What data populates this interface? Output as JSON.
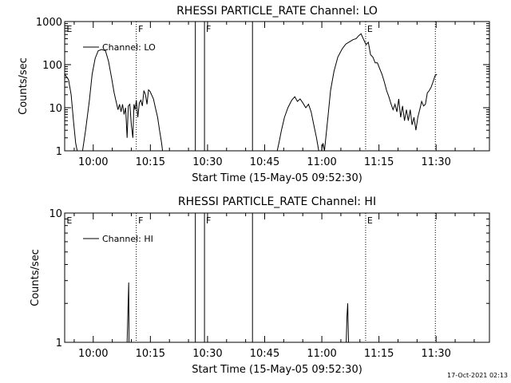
{
  "chart_data": [
    {
      "type": "line",
      "title": "RHESSI PARTICLE_RATE Channel: LO",
      "xlabel": "Start Time (15-May-05 09:52:30)",
      "ylabel": "Counts/sec",
      "y_scale": "log",
      "ylim": [
        1,
        1000
      ],
      "y_ticks": [
        {
          "v": 1,
          "label": "1"
        },
        {
          "v": 10,
          "label": "10"
        },
        {
          "v": 100,
          "label": "100"
        },
        {
          "v": 1000,
          "label": "1000"
        }
      ],
      "xlim_min": [
        -7.5,
        104
      ],
      "x_ticks": [
        {
          "t": 0,
          "label": "10:00"
        },
        {
          "t": 15,
          "label": "10:15"
        },
        {
          "t": 30,
          "label": "10:30"
        },
        {
          "t": 45,
          "label": "10:45"
        },
        {
          "t": 60,
          "label": "11:00"
        },
        {
          "t": 75,
          "label": "11:15"
        },
        {
          "t": 90,
          "label": "11:30"
        }
      ],
      "legend": {
        "label": "Channel: LO",
        "placement": "top-left"
      },
      "solid_markers": [
        26.8,
        29.2,
        41.8
      ],
      "dotted_markers": [
        11.3,
        71.5,
        89.8
      ],
      "marker_labels": [
        {
          "t": -7.0,
          "label": "E"
        },
        {
          "t": 11.8,
          "label": "F"
        },
        {
          "t": 29.6,
          "label": "F"
        },
        {
          "t": 71.9,
          "label": "E"
        }
      ],
      "series": [
        {
          "segments": [
            [
              [
                -7.5,
                60
              ],
              [
                -6.5,
                45
              ],
              [
                -5.8,
                20
              ],
              [
                -5.2,
                5
              ],
              [
                -4.6,
                1.5
              ],
              [
                -4.2,
                1
              ]
            ],
            [
              [
                -2.8,
                1
              ],
              [
                -2.0,
                3
              ],
              [
                -1.0,
                15
              ],
              [
                -0.3,
                60
              ],
              [
                0.5,
                140
              ],
              [
                1.3,
                210
              ],
              [
                2.2,
                225
              ],
              [
                3.2,
                210
              ],
              [
                4.0,
                120
              ],
              [
                4.8,
                50
              ],
              [
                5.5,
                22
              ],
              [
                6.0,
                14
              ],
              [
                6.5,
                9
              ],
              [
                6.9,
                12
              ],
              [
                7.3,
                8
              ],
              [
                7.7,
                12
              ],
              [
                8.1,
                7
              ],
              [
                8.5,
                10
              ],
              [
                8.9,
                2
              ],
              [
                9.2,
                11
              ],
              [
                9.6,
                12
              ],
              [
                10.0,
                4
              ],
              [
                10.4,
                2
              ],
              [
                10.7,
                12
              ],
              [
                11.0,
                9
              ],
              [
                11.3,
                15
              ],
              [
                11.7,
                6
              ],
              [
                12.1,
                13
              ],
              [
                12.5,
                15
              ],
              [
                12.9,
                11
              ],
              [
                13.3,
                25
              ],
              [
                13.7,
                20
              ],
              [
                14.1,
                12
              ],
              [
                14.5,
                26
              ],
              [
                14.9,
                24
              ],
              [
                15.3,
                20
              ],
              [
                15.8,
                16
              ],
              [
                16.3,
                10
              ],
              [
                16.9,
                6
              ],
              [
                17.4,
                3
              ],
              [
                17.9,
                1.6
              ],
              [
                18.2,
                1
              ]
            ],
            [
              [
                48.3,
                1
              ],
              [
                48.8,
                1.6
              ],
              [
                49.4,
                3
              ],
              [
                50.2,
                6
              ],
              [
                51.1,
                10
              ],
              [
                52.1,
                15
              ],
              [
                52.9,
                18
              ],
              [
                53.6,
                14
              ],
              [
                54.3,
                16
              ],
              [
                55.0,
                13
              ],
              [
                55.8,
                10
              ],
              [
                56.5,
                12
              ],
              [
                57.2,
                8
              ],
              [
                57.9,
                4
              ],
              [
                58.6,
                2
              ],
              [
                59.2,
                1
              ]
            ],
            [
              [
                59.9,
                1
              ],
              [
                60.3,
                1.5
              ],
              [
                60.7,
                1
              ],
              [
                61.0,
                1.8
              ],
              [
                61.6,
                6
              ],
              [
                62.3,
                25
              ],
              [
                63.2,
                70
              ],
              [
                64.2,
                150
              ],
              [
                65.3,
                230
              ],
              [
                66.3,
                300
              ],
              [
                67.3,
                340
              ],
              [
                68.2,
                380
              ],
              [
                69.0,
                400
              ],
              [
                69.7,
                470
              ],
              [
                70.3,
                520
              ],
              [
                71.0,
                380
              ],
              [
                71.6,
                290
              ],
              [
                72.2,
                330
              ],
              [
                72.8,
                170
              ],
              [
                73.4,
                150
              ],
              [
                74.0,
                110
              ],
              [
                74.6,
                110
              ],
              [
                75.2,
                80
              ],
              [
                75.8,
                60
              ],
              [
                76.4,
                40
              ],
              [
                77.0,
                25
              ],
              [
                77.6,
                18
              ],
              [
                78.2,
                12
              ],
              [
                78.7,
                9
              ],
              [
                79.2,
                12
              ],
              [
                79.7,
                8
              ],
              [
                80.2,
                16
              ],
              [
                80.7,
                6
              ],
              [
                81.2,
                11
              ],
              [
                81.7,
                5
              ],
              [
                82.2,
                9
              ],
              [
                82.7,
                5
              ],
              [
                83.2,
                9
              ],
              [
                83.7,
                4
              ],
              [
                84.2,
                6
              ],
              [
                84.7,
                3
              ],
              [
                85.2,
                6
              ],
              [
                85.7,
                9
              ],
              [
                86.2,
                14
              ],
              [
                86.7,
                11
              ],
              [
                87.2,
                12
              ],
              [
                87.7,
                22
              ],
              [
                88.2,
                25
              ],
              [
                88.7,
                30
              ],
              [
                89.2,
                40
              ],
              [
                89.7,
                55
              ],
              [
                90.2,
                60
              ]
            ]
          ]
        }
      ]
    },
    {
      "type": "line",
      "title": "RHESSI PARTICLE_RATE Channel: HI",
      "xlabel": "Start Time (15-May-05 09:52:30)",
      "ylabel": "Counts/sec",
      "y_scale": "log",
      "ylim": [
        1,
        10
      ],
      "y_ticks": [
        {
          "v": 1,
          "label": "1"
        },
        {
          "v": 10,
          "label": "10"
        }
      ],
      "xlim_min": [
        -7.5,
        104
      ],
      "x_ticks": [
        {
          "t": 0,
          "label": "10:00"
        },
        {
          "t": 15,
          "label": "10:15"
        },
        {
          "t": 30,
          "label": "10:30"
        },
        {
          "t": 45,
          "label": "10:45"
        },
        {
          "t": 60,
          "label": "11:00"
        },
        {
          "t": 75,
          "label": "11:15"
        },
        {
          "t": 90,
          "label": "11:30"
        }
      ],
      "legend": {
        "label": "Channel: HI",
        "placement": "top-left"
      },
      "solid_markers": [
        26.8,
        29.2,
        41.8
      ],
      "dotted_markers": [
        11.3,
        71.5,
        89.8
      ],
      "marker_labels": [
        {
          "t": -7.0,
          "label": "E"
        },
        {
          "t": 11.8,
          "label": "F"
        },
        {
          "t": 29.6,
          "label": "F"
        },
        {
          "t": 71.9,
          "label": "E"
        }
      ],
      "series": [
        {
          "segments": [
            [
              [
                8.9,
                1
              ],
              [
                9.3,
                2.9
              ],
              [
                9.4,
                1
              ]
            ],
            [
              [
                66.4,
                1
              ],
              [
                66.6,
                1.6
              ],
              [
                66.8,
                2.0
              ],
              [
                67.0,
                1
              ]
            ]
          ]
        }
      ]
    }
  ],
  "footer": {
    "timestamp": "17-Oct-2021 02:13"
  }
}
